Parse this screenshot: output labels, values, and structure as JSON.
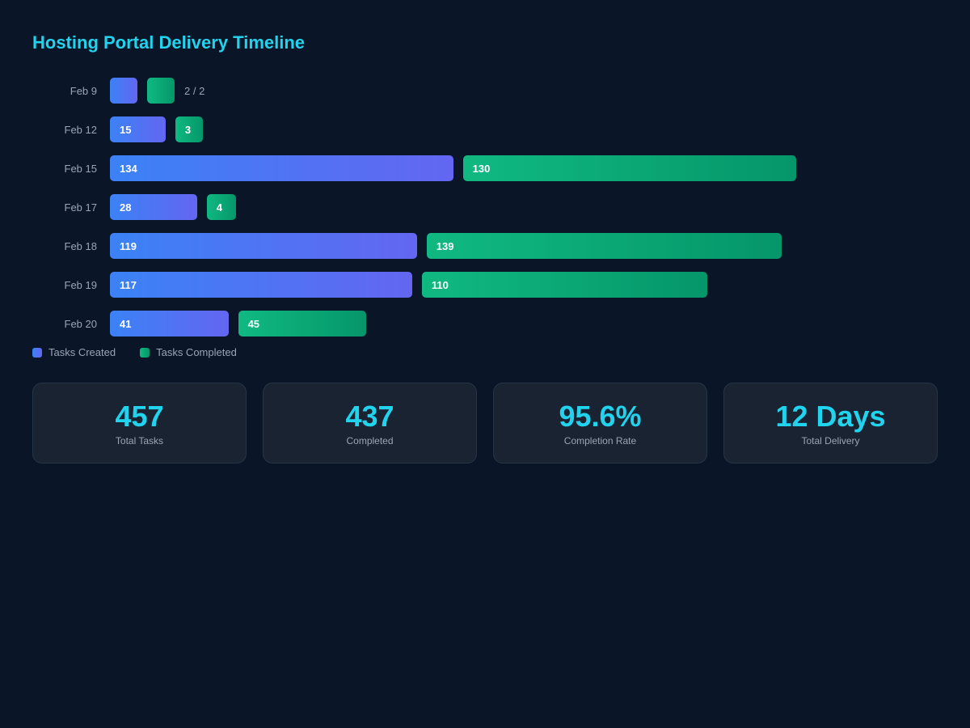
{
  "title": "Hosting Portal Delivery Timeline",
  "chart_data": {
    "type": "bar",
    "orientation": "horizontal",
    "categories": [
      "Feb 9",
      "Feb 12",
      "Feb 15",
      "Feb 17",
      "Feb 18",
      "Feb 19",
      "Feb 20"
    ],
    "series": [
      {
        "name": "Tasks Created",
        "values": [
          2,
          15,
          134,
          28,
          119,
          117,
          41
        ],
        "color": "#3b82f6"
      },
      {
        "name": "Tasks Completed",
        "values": [
          2,
          3,
          130,
          4,
          139,
          110,
          45
        ],
        "color": "#10b981"
      }
    ],
    "annotations": [
      {
        "category": "Feb 9",
        "text": "2 / 2"
      }
    ],
    "legend": "bottom-left",
    "grid": false
  },
  "stats": [
    {
      "value": "457",
      "label": "Total Tasks"
    },
    {
      "value": "437",
      "label": "Completed"
    },
    {
      "value": "95.6%",
      "label": "Completion Rate"
    },
    {
      "value": "12 Days",
      "label": "Total Delivery"
    }
  ]
}
